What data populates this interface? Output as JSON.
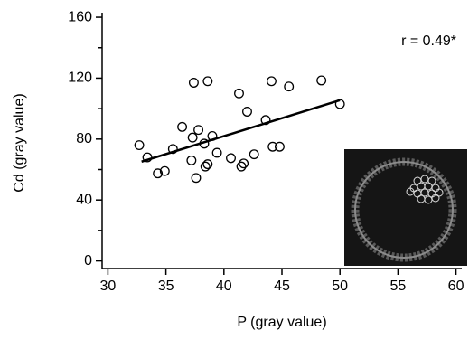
{
  "chart_data": {
    "type": "scatter",
    "x_label": "P (gray value)",
    "y_label": "Cd (gray value)",
    "annotation": "r = 0.49*",
    "xlim": [
      29.5,
      60.5
    ],
    "ylim": [
      -5,
      163
    ],
    "xticks": [
      30,
      35,
      40,
      45,
      50,
      55,
      60
    ],
    "yticks": [
      0,
      40,
      80,
      120,
      160
    ],
    "yminor": [
      20,
      60,
      100,
      140
    ],
    "series": [
      {
        "color": "#000000",
        "x": [
          32.7,
          33.4,
          34.3,
          34.9,
          35.6,
          36.4,
          37.2,
          37.3,
          37.4,
          37.6,
          37.8,
          38.3,
          38.4,
          38.6,
          38.6,
          39.0,
          39.4,
          40.6,
          41.3,
          41.5,
          41.7,
          42.0,
          42.6,
          43.6,
          44.1,
          44.2,
          44.8,
          45.6,
          48.4,
          50.0
        ],
        "values": [
          76,
          68,
          57.5,
          59,
          73.5,
          88,
          66,
          81,
          117,
          54.5,
          86,
          77,
          62,
          63.5,
          118,
          82,
          71,
          67.5,
          110,
          62,
          64,
          98,
          70,
          92.5,
          118,
          75,
          75,
          114.5,
          118.5,
          103
        ]
      }
    ],
    "fit": {
      "color": "#000000",
      "x": [
        32.9,
        50.0
      ],
      "values": [
        65.2,
        105.5
      ]
    }
  }
}
